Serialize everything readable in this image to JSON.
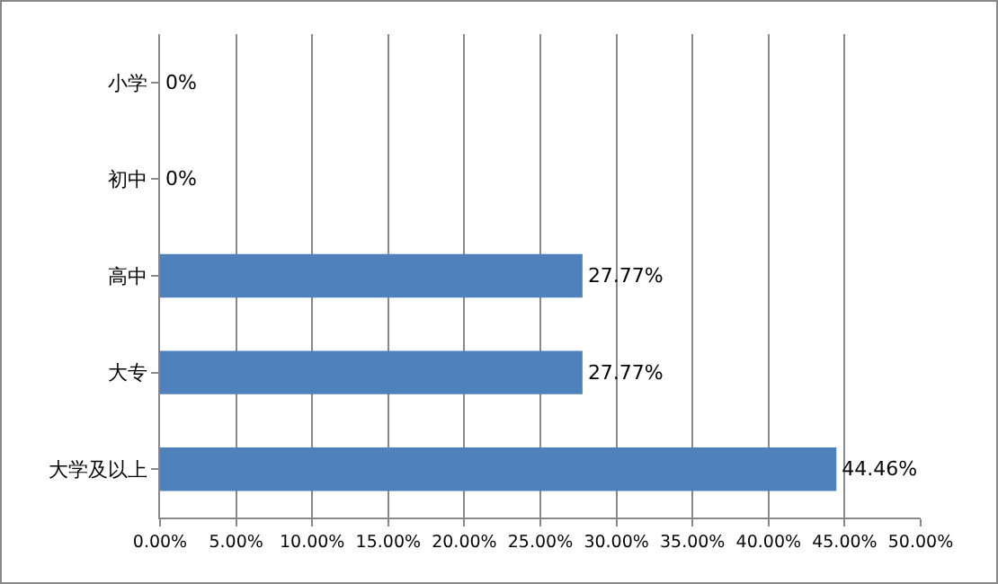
{
  "chart_data": {
    "type": "bar",
    "orientation": "horizontal",
    "categories": [
      "小学",
      "初中",
      "高中",
      "大专",
      "大学及以上"
    ],
    "values": [
      0,
      0,
      27.77,
      27.77,
      44.46
    ],
    "value_labels": [
      "0%",
      "0%",
      "27.77%",
      "27.77%",
      "44.46%"
    ],
    "color": "#4f81bd",
    "xlim": [
      0,
      50
    ],
    "xticks": [
      {
        "value": 0,
        "label": "0.00%"
      },
      {
        "value": 5,
        "label": "5.00%"
      },
      {
        "value": 10,
        "label": "10.00%"
      },
      {
        "value": 15,
        "label": "15.00%"
      },
      {
        "value": 20,
        "label": "20.00%"
      },
      {
        "value": 25,
        "label": "25.00%"
      },
      {
        "value": 30,
        "label": "30.00%"
      },
      {
        "value": 35,
        "label": "35.00%"
      },
      {
        "value": 40,
        "label": "40.00%"
      },
      {
        "value": 45,
        "label": "45.00%"
      },
      {
        "value": 50,
        "label": "50.00%"
      }
    ],
    "grid": "x"
  }
}
